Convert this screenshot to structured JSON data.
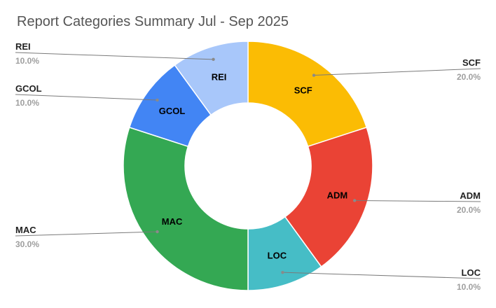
{
  "chart_data": {
    "type": "pie",
    "title": "Report Categories Summary Jul - Sep 2025",
    "donut": true,
    "legend": "none",
    "slices": [
      {
        "label": "SCF",
        "value": 20.0,
        "percent_label": "20.0%",
        "color": "#fbbc04"
      },
      {
        "label": "ADM",
        "value": 20.0,
        "percent_label": "20.0%",
        "color": "#ea4335"
      },
      {
        "label": "LOC",
        "value": 10.0,
        "percent_label": "10.0%",
        "color": "#46bdc6"
      },
      {
        "label": "MAC",
        "value": 30.0,
        "percent_label": "30.0%",
        "color": "#34a853"
      },
      {
        "label": "GCOL",
        "value": 10.0,
        "percent_label": "10.0%",
        "color": "#4285f4"
      },
      {
        "label": "REI",
        "value": 10.0,
        "percent_label": "10.0%",
        "color": "#a8c7fa"
      }
    ]
  }
}
